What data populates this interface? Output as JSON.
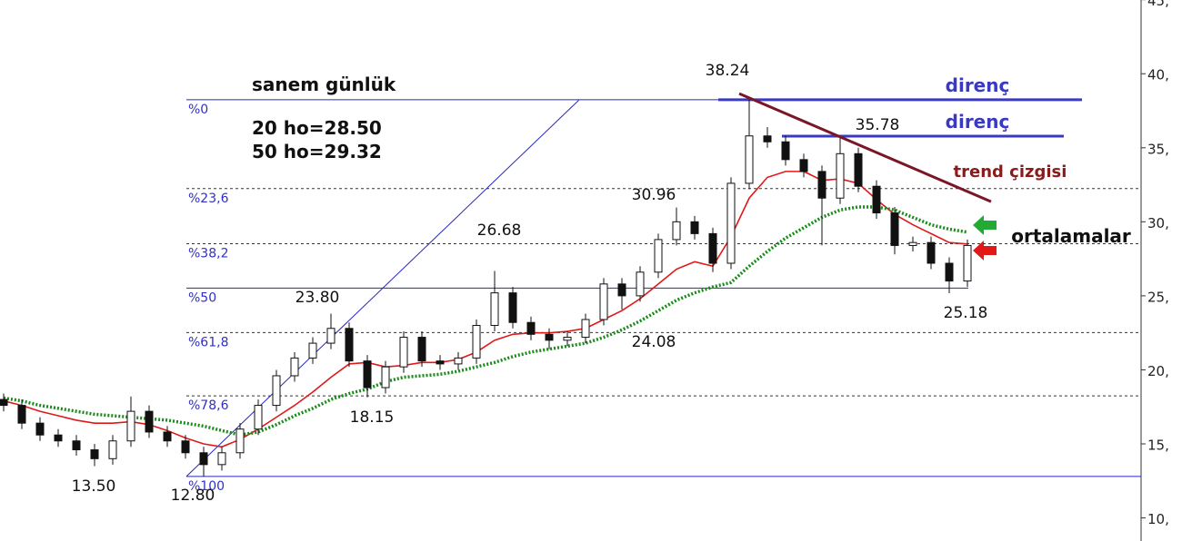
{
  "chart_data": {
    "type": "candlestick",
    "title": "sanem günlük",
    "subtitle": [
      "20 ho=28.50",
      "50 ho=29.32"
    ],
    "ylim": [
      8.44,
      44.98
    ],
    "xlim": [
      -0.2,
      62.55
    ],
    "yticks": [
      {
        "value": 10,
        "label": "10,"
      },
      {
        "value": 15,
        "label": "15,"
      },
      {
        "value": 20,
        "label": "20,"
      },
      {
        "value": 25,
        "label": "25,"
      },
      {
        "value": 30,
        "label": "30,"
      },
      {
        "value": 35,
        "label": "35,"
      },
      {
        "value": 40,
        "label": "40,"
      },
      {
        "value": 45,
        "label": "45,"
      }
    ],
    "open": [
      18.0,
      17.6,
      16.4,
      15.6,
      15.2,
      14.6,
      14.0,
      15.2,
      17.2,
      15.8,
      15.2,
      14.4,
      13.6,
      14.4,
      16.0,
      17.6,
      19.6,
      20.8,
      21.8,
      22.8,
      20.6,
      18.8,
      20.2,
      22.2,
      20.6,
      20.4,
      20.8,
      23.0,
      25.2,
      23.2,
      22.4,
      22.0,
      22.2,
      23.4,
      25.8,
      25.0,
      26.6,
      28.8,
      30.0,
      29.2,
      27.2,
      32.6,
      35.8,
      35.4,
      34.2,
      33.4,
      31.6,
      34.6,
      32.4,
      30.6,
      28.4,
      28.6,
      27.2,
      26.0
    ],
    "high": [
      18.4,
      18.0,
      16.8,
      16.0,
      15.6,
      15.0,
      15.6,
      18.2,
      17.6,
      16.2,
      15.6,
      14.8,
      14.8,
      16.4,
      18.0,
      20.0,
      21.2,
      22.2,
      23.8,
      23.2,
      21.0,
      20.6,
      22.6,
      22.6,
      21.0,
      21.2,
      23.4,
      26.68,
      25.6,
      23.6,
      22.8,
      22.6,
      23.8,
      26.2,
      26.2,
      27.0,
      29.2,
      30.96,
      30.4,
      29.6,
      33.0,
      38.24,
      36.4,
      35.8,
      34.6,
      33.8,
      35.78,
      35.0,
      32.8,
      31.0,
      29.0,
      29.0,
      27.6,
      28.8
    ],
    "low": [
      17.2,
      16.0,
      15.2,
      14.8,
      14.2,
      13.5,
      13.6,
      14.8,
      15.4,
      14.8,
      14.0,
      12.8,
      13.2,
      14.0,
      15.6,
      17.2,
      19.2,
      20.4,
      21.4,
      20.2,
      18.15,
      18.4,
      19.8,
      20.2,
      20.0,
      20.0,
      20.4,
      22.6,
      22.8,
      22.0,
      21.4,
      21.6,
      21.8,
      23.0,
      24.08,
      24.6,
      26.2,
      28.4,
      28.8,
      26.6,
      26.8,
      32.2,
      35.0,
      33.8,
      33.0,
      28.4,
      31.2,
      32.0,
      30.2,
      27.8,
      28.0,
      26.8,
      25.18,
      25.6
    ],
    "close": [
      17.6,
      16.4,
      15.6,
      15.2,
      14.6,
      14.0,
      15.2,
      17.2,
      15.8,
      15.2,
      14.4,
      13.6,
      14.4,
      16.0,
      17.6,
      19.6,
      20.8,
      21.8,
      22.8,
      20.6,
      18.8,
      20.2,
      22.2,
      20.6,
      20.4,
      20.8,
      23.0,
      25.2,
      23.2,
      22.4,
      22.0,
      22.2,
      23.4,
      25.8,
      25.0,
      26.6,
      28.8,
      30.0,
      29.2,
      27.2,
      32.6,
      35.8,
      35.4,
      34.2,
      33.4,
      31.6,
      34.6,
      32.4,
      30.6,
      28.4,
      28.6,
      27.2,
      26.0,
      28.4
    ],
    "series": [
      {
        "color": "#e01818",
        "style": "solid",
        "values": [
          17.9,
          17.6,
          17.2,
          16.9,
          16.6,
          16.4,
          16.4,
          16.5,
          16.3,
          15.9,
          15.4,
          15.0,
          14.8,
          15.3,
          16.0,
          16.8,
          17.6,
          18.5,
          19.5,
          20.4,
          20.5,
          20.2,
          20.3,
          20.5,
          20.5,
          20.7,
          21.2,
          22.0,
          22.4,
          22.5,
          22.5,
          22.6,
          22.8,
          23.4,
          24.0,
          24.8,
          25.8,
          26.8,
          27.3,
          27.0,
          29.0,
          31.6,
          33.0,
          33.4,
          33.4,
          32.8,
          32.9,
          32.6,
          31.5,
          30.5,
          29.8,
          29.2,
          28.6,
          28.5
        ]
      },
      {
        "color": "#1a8a1a",
        "style": "dotted",
        "values": [
          18.1,
          17.9,
          17.6,
          17.4,
          17.2,
          17.0,
          16.9,
          16.8,
          16.7,
          16.6,
          16.4,
          16.2,
          15.9,
          15.6,
          15.8,
          16.3,
          16.9,
          17.4,
          18.0,
          18.4,
          18.7,
          19.2,
          19.5,
          19.6,
          19.7,
          19.9,
          20.2,
          20.5,
          20.9,
          21.2,
          21.4,
          21.6,
          21.8,
          22.2,
          22.7,
          23.3,
          24.0,
          24.7,
          25.2,
          25.6,
          25.9,
          27.0,
          28.0,
          28.9,
          29.6,
          30.3,
          30.8,
          31.0,
          31.0,
          30.8,
          30.3,
          29.8,
          29.5,
          29.3
        ]
      }
    ],
    "fib": {
      "labels": [
        "%0",
        "%23,6",
        "%38,2",
        "%50",
        "%61,8",
        "%78,6",
        "%100"
      ],
      "levels": [
        38.24,
        32.24,
        28.52,
        25.52,
        22.52,
        18.24,
        12.8
      ],
      "styles": [
        "solid",
        "dashed",
        "dashed",
        "solid",
        "dashed",
        "dashed",
        "solid"
      ],
      "color": "#2626c0",
      "diagonal": {
        "x": [
          10.05,
          31.65
        ],
        "y": [
          12.8,
          38.24
        ]
      }
    },
    "resistance": {
      "label": [
        "direnç",
        "direnç"
      ],
      "levels": [
        38.24,
        35.78
      ],
      "x": [
        [
          39.3,
          59.3
        ],
        [
          42.8,
          58.3
        ]
      ],
      "color": "#3a3ac0"
    },
    "trendline": {
      "label": "trend çizgisi",
      "x": [
        40.45,
        54.3
      ],
      "y": [
        38.66,
        31.36
      ],
      "color": "#7a1626"
    },
    "moving_average_label": "ortalamalar",
    "price_labels": [
      "38.24",
      "35.78",
      "30.96",
      "26.68",
      "23.80",
      "24.08",
      "18.15",
      "13.50",
      "12.80",
      "25.18"
    ]
  }
}
